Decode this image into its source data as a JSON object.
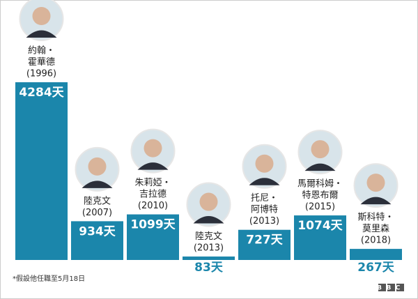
{
  "chart_data": {
    "type": "bar",
    "categories": [
      [
        "約翰・",
        "霍華德",
        "(1996)"
      ],
      [
        "陸克文",
        "(2007)"
      ],
      [
        "朱莉婭・",
        "吉拉德",
        "(2010)"
      ],
      [
        "陸克文",
        "(2013)"
      ],
      [
        "托尼・",
        "阿博特",
        "(2013)"
      ],
      [
        "馬爾科姆・",
        "特恩布爾",
        "(2015)"
      ],
      [
        "斯科特・",
        "莫里森",
        "(2018)"
      ]
    ],
    "values": [
      4284,
      934,
      1099,
      83,
      727,
      1074,
      267
    ],
    "value_labels": [
      "4284天",
      "934天",
      "1099天",
      "83天",
      "727天",
      "1074天",
      "267天"
    ],
    "color": "#1b86ab",
    "footnote": "*假設他任職至5月18日",
    "source": "BBC"
  }
}
